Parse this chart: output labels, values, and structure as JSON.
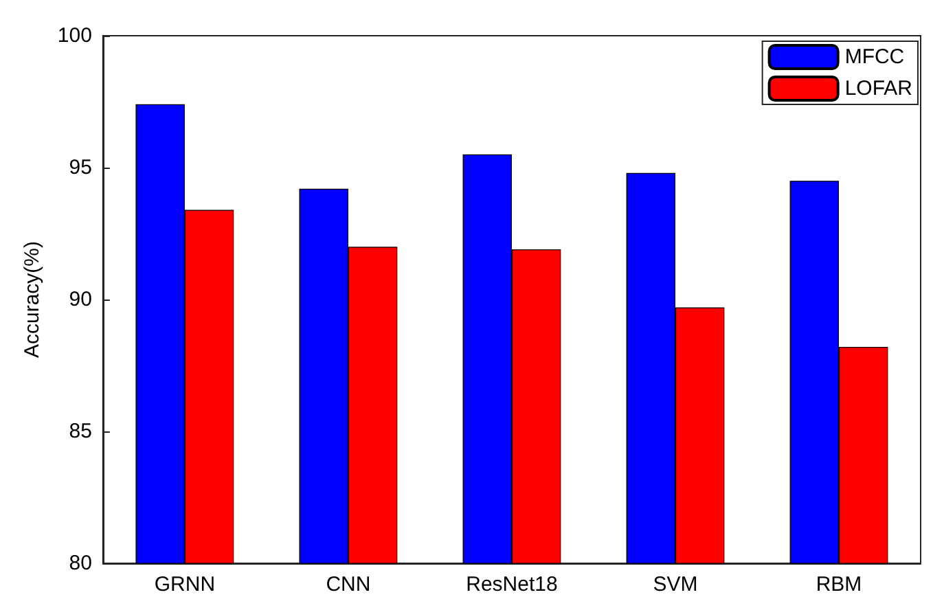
{
  "chart_data": {
    "type": "bar",
    "ylabel": "Accuracy(%)",
    "categories": [
      "GRNN",
      "CNN",
      "ResNet18",
      "SVM",
      "RBM"
    ],
    "series": [
      {
        "name": "MFCC",
        "color": "#0000ff",
        "values": [
          97.4,
          94.2,
          95.5,
          94.8,
          94.5
        ]
      },
      {
        "name": "LOFAR",
        "color": "#ff0000",
        "values": [
          93.4,
          92.0,
          91.9,
          89.7,
          88.2
        ]
      }
    ],
    "ylim": [
      80,
      100
    ],
    "yticks": [
      80,
      85,
      90,
      95,
      100
    ],
    "grid": false,
    "legend": "top right"
  }
}
